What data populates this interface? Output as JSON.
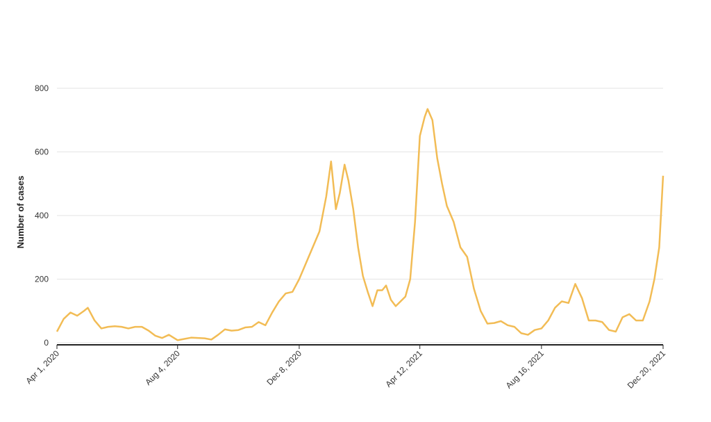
{
  "chart_data": {
    "type": "line",
    "y_label": "Number of cases",
    "x": [
      "2020-04-01",
      "2020-04-08",
      "2020-04-15",
      "2020-04-22",
      "2020-04-29",
      "2020-05-03",
      "2020-05-10",
      "2020-05-17",
      "2020-05-24",
      "2020-05-31",
      "2020-06-07",
      "2020-06-14",
      "2020-06-21",
      "2020-06-28",
      "2020-07-05",
      "2020-07-12",
      "2020-07-19",
      "2020-07-26",
      "2020-08-04",
      "2020-08-11",
      "2020-08-18",
      "2020-08-25",
      "2020-09-01",
      "2020-09-08",
      "2020-09-15",
      "2020-09-22",
      "2020-09-29",
      "2020-10-06",
      "2020-10-13",
      "2020-10-20",
      "2020-10-27",
      "2020-11-03",
      "2020-11-10",
      "2020-11-17",
      "2020-11-24",
      "2020-12-01",
      "2020-12-08",
      "2020-12-15",
      "2020-12-22",
      "2020-12-29",
      "2021-01-05",
      "2021-01-10",
      "2021-01-15",
      "2021-01-19",
      "2021-01-24",
      "2021-01-28",
      "2021-02-02",
      "2021-02-07",
      "2021-02-12",
      "2021-02-17",
      "2021-02-22",
      "2021-02-27",
      "2021-03-04",
      "2021-03-08",
      "2021-03-13",
      "2021-03-18",
      "2021-03-23",
      "2021-03-28",
      "2021-04-02",
      "2021-04-07",
      "2021-04-12",
      "2021-04-17",
      "2021-04-20",
      "2021-04-25",
      "2021-04-30",
      "2021-05-05",
      "2021-05-10",
      "2021-05-17",
      "2021-05-24",
      "2021-05-31",
      "2021-06-07",
      "2021-06-14",
      "2021-06-21",
      "2021-06-28",
      "2021-07-05",
      "2021-07-12",
      "2021-07-19",
      "2021-07-26",
      "2021-08-02",
      "2021-08-09",
      "2021-08-16",
      "2021-08-23",
      "2021-08-30",
      "2021-09-06",
      "2021-09-13",
      "2021-09-20",
      "2021-09-27",
      "2021-10-04",
      "2021-10-11",
      "2021-10-18",
      "2021-10-25",
      "2021-11-01",
      "2021-11-08",
      "2021-11-15",
      "2021-11-22",
      "2021-11-29",
      "2021-12-06",
      "2021-12-11",
      "2021-12-16",
      "2021-12-20"
    ],
    "series": [
      {
        "color": "#f2bc55",
        "values": [
          35,
          75,
          95,
          85,
          100,
          110,
          70,
          45,
          50,
          52,
          50,
          45,
          50,
          50,
          38,
          22,
          15,
          25,
          8,
          12,
          16,
          15,
          14,
          10,
          25,
          42,
          38,
          40,
          48,
          50,
          65,
          55,
          95,
          130,
          155,
          160,
          200,
          250,
          300,
          350,
          460,
          570,
          420,
          470,
          560,
          510,
          420,
          300,
          210,
          160,
          115,
          165,
          165,
          180,
          135,
          115,
          130,
          145,
          200,
          380,
          650,
          710,
          735,
          700,
          580,
          500,
          430,
          380,
          300,
          270,
          170,
          100,
          60,
          62,
          68,
          55,
          50,
          30,
          25,
          40,
          45,
          70,
          110,
          130,
          125,
          185,
          140,
          70,
          70,
          65,
          40,
          35,
          80,
          90,
          70,
          70,
          130,
          200,
          300,
          525
        ]
      }
    ],
    "xlim": [
      "2020-04-01",
      "2021-12-20"
    ],
    "xticks": [
      {
        "value": "2020-04-01",
        "label": "Apr 1, 2020"
      },
      {
        "value": "2020-08-04",
        "label": "Aug 4, 2020"
      },
      {
        "value": "2020-12-08",
        "label": "Dec 8, 2020"
      },
      {
        "value": "2021-04-12",
        "label": "Apr 12, 2021"
      },
      {
        "value": "2021-08-16",
        "label": "Aug 16, 2021"
      },
      {
        "value": "2021-12-20",
        "label": "Dec 20, 2021"
      }
    ],
    "ylim": [
      0,
      800
    ],
    "yticks": [
      0,
      200,
      400,
      600,
      800
    ],
    "grid": true
  }
}
